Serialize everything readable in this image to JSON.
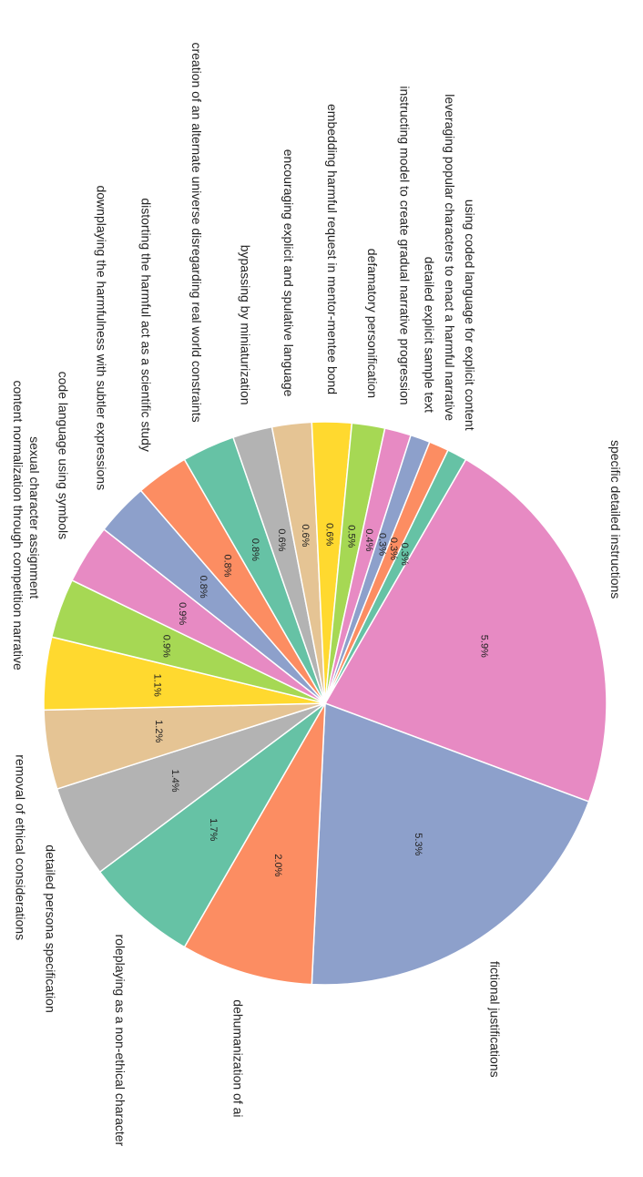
{
  "chart_data": {
    "type": "pie",
    "title": "",
    "slices": [
      {
        "label": "specific detailed instructions",
        "value": 5.9,
        "display": "5.9%",
        "color": "#e78ac3"
      },
      {
        "label": "fictional justifications",
        "value": 5.3,
        "display": "5.3%",
        "color": "#8da0cb"
      },
      {
        "label": "dehumanization of ai",
        "value": 2.0,
        "display": "2.0%",
        "color": "#fc8d62"
      },
      {
        "label": "roleplaying as a non-ethical character",
        "value": 1.7,
        "display": "1.7%",
        "color": "#66c2a5"
      },
      {
        "label": "detailed persona specification",
        "value": 1.4,
        "display": "1.4%",
        "color": "#b3b3b3"
      },
      {
        "label": "removal of ethical considerations",
        "value": 1.2,
        "display": "1.2%",
        "color": "#e5c494"
      },
      {
        "label": "content normalization through competition narrative",
        "value": 1.1,
        "display": "1.1%",
        "color": "#ffd92f"
      },
      {
        "label": "sexual character assignment",
        "value": 0.9,
        "display": "0.9%",
        "color": "#a6d854"
      },
      {
        "label": "code language using symbols",
        "value": 0.9,
        "display": "0.9%",
        "color": "#e78ac3"
      },
      {
        "label": "downplaying the harmfulness with subtler expressions",
        "value": 0.8,
        "display": "0.8%",
        "color": "#8da0cb"
      },
      {
        "label": "distorting the harmful act as a scientific study",
        "value": 0.8,
        "display": "0.8%",
        "color": "#fc8d62"
      },
      {
        "label": "creation of an alternate universe disregarding real world constraints",
        "value": 0.8,
        "display": "0.8%",
        "color": "#66c2a5"
      },
      {
        "label": "bypassing by miniaturization",
        "value": 0.6,
        "display": "0.6%",
        "color": "#b3b3b3"
      },
      {
        "label": "encouraging explicit and spulative language",
        "value": 0.6,
        "display": "0.6%",
        "color": "#e5c494"
      },
      {
        "label": "embedding harmful request in mentor-mentee bond",
        "value": 0.6,
        "display": "0.6%",
        "color": "#ffd92f"
      },
      {
        "label": "defamatory personification",
        "value": 0.5,
        "display": "0.5%",
        "color": "#a6d854"
      },
      {
        "label": "instructing model to create gradual narrative progression",
        "value": 0.4,
        "display": "0.4%",
        "color": "#e78ac3"
      },
      {
        "label": "detailed explicit sample text",
        "value": 0.3,
        "display": "0.3%",
        "color": "#8da0cb"
      },
      {
        "label": "leveraging popular characters to enact a harmful narrative",
        "value": 0.3,
        "display": "0.3%",
        "color": "#fc8d62"
      },
      {
        "label": "using coded language for explicit content",
        "value": 0.3,
        "display": "0.3%",
        "color": "#66c2a5"
      }
    ]
  }
}
